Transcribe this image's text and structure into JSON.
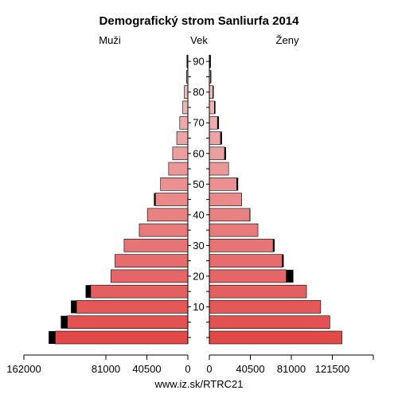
{
  "chart_data": {
    "type": "bar",
    "subtype": "population-pyramid",
    "title": "Demografický strom Sanliurfa 2014",
    "left_label": "Muži",
    "center_label": "Vek",
    "right_label": "Ženy",
    "footer": "www.iz.sk/RTRC21",
    "age_groups": [
      "0-4",
      "5-9",
      "10-14",
      "15-19",
      "20-24",
      "25-29",
      "30-34",
      "35-39",
      "40-44",
      "45-49",
      "50-54",
      "55-59",
      "60-64",
      "65-69",
      "70-74",
      "75-79",
      "80-84",
      "85-89",
      "90+"
    ],
    "age_ticks": [
      "10",
      "20",
      "30",
      "40",
      "50",
      "60",
      "70",
      "80",
      "90"
    ],
    "age_tick_groups": [
      2,
      4,
      6,
      8,
      10,
      12,
      14,
      16,
      18
    ],
    "x_ticks_left": [
      "162000",
      "81000",
      "40500",
      "0"
    ],
    "x_ticks_left_values": [
      162000,
      81000,
      40500,
      0
    ],
    "x_ticks_right": [
      "0",
      "40500",
      "81000",
      "121500"
    ],
    "x_ticks_right_values": [
      0,
      40500,
      81000,
      121500
    ],
    "xlim": [
      0,
      162000
    ],
    "series": [
      {
        "name": "Muži",
        "values": [
          131000,
          119000,
          110000,
          96000,
          76000,
          72000,
          63000,
          48000,
          40000,
          32000,
          27000,
          19000,
          15000,
          11000,
          8000,
          5000,
          3500,
          1200,
          700
        ]
      },
      {
        "name": "Muži excess",
        "values": [
          6500,
          6500,
          5500,
          5000,
          0,
          0,
          0,
          0,
          0,
          1500,
          0,
          0,
          0,
          0,
          0,
          0,
          0,
          400,
          500
        ]
      },
      {
        "name": "Ženy",
        "values": [
          131000,
          119000,
          110000,
          96000,
          76000,
          72000,
          63000,
          48000,
          40000,
          32000,
          27000,
          19000,
          15000,
          11000,
          8000,
          5000,
          3500,
          1200,
          700
        ]
      },
      {
        "name": "Ženy excess",
        "values": [
          0,
          0,
          0,
          0,
          7000,
          1500,
          1500,
          0,
          500,
          0,
          1500,
          0,
          1500,
          1500,
          1500,
          1000,
          800,
          700,
          800
        ]
      }
    ],
    "colors": {
      "excess": "#000000",
      "bar_young": "#e24a4a",
      "bar_old": "#f0c8c8",
      "stroke": "#000000"
    },
    "grid": false
  }
}
